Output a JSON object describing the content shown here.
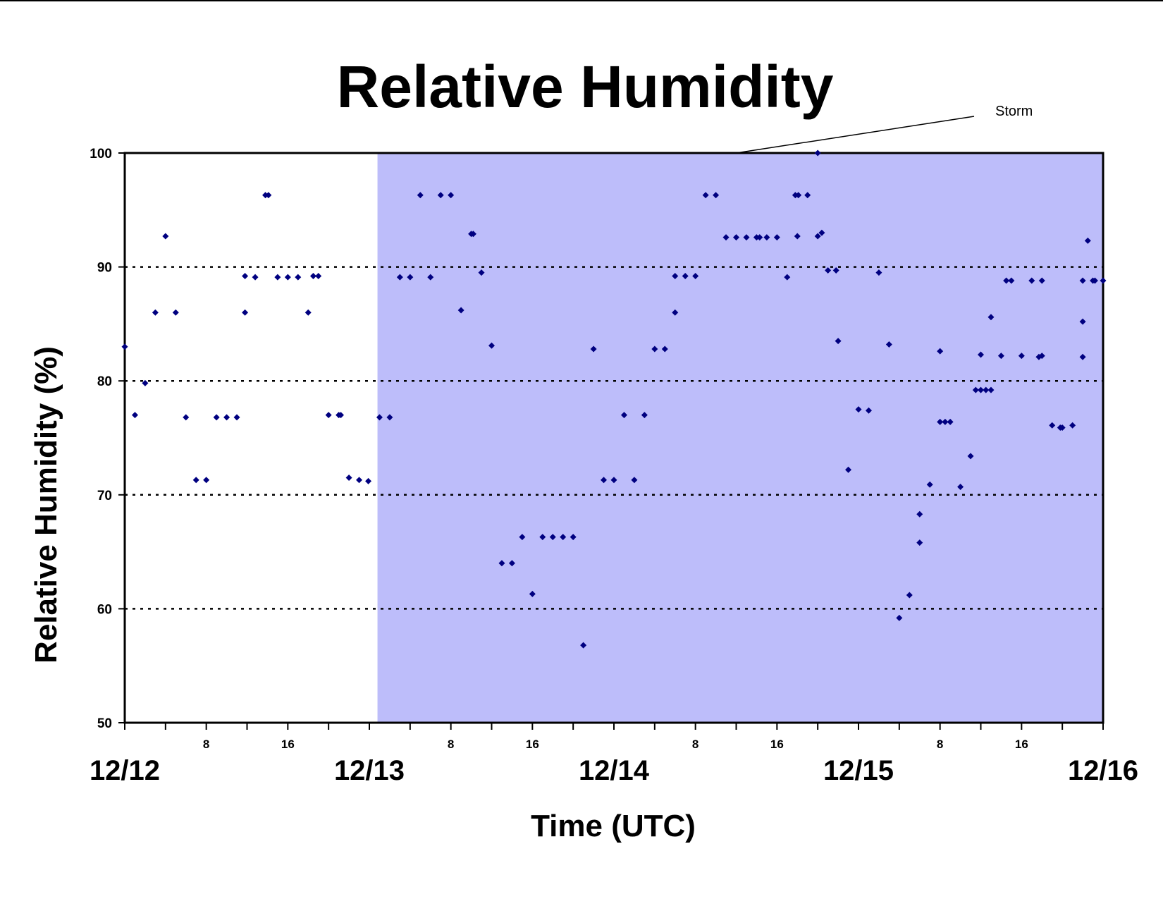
{
  "chart_data": {
    "type": "scatter",
    "title": "Relative Humidity",
    "xlabel": "Time (UTC)",
    "ylabel": "Relative Humidity (%)",
    "x_unit": "hours from 12/12 00 UTC",
    "ylim": [
      50,
      100
    ],
    "xlim": [
      0,
      96
    ],
    "yticks": [
      "50",
      "60",
      "70",
      "80",
      "90",
      "100"
    ],
    "grid_lines_y": [
      60,
      70,
      80,
      90
    ],
    "hour_ticks": [
      {
        "x": 8,
        "label": "8"
      },
      {
        "x": 16,
        "label": "16"
      },
      {
        "x": 32,
        "label": "8"
      },
      {
        "x": 40,
        "label": "16"
      },
      {
        "x": 56,
        "label": "8"
      },
      {
        "x": 64,
        "label": "16"
      },
      {
        "x": 80,
        "label": "8"
      },
      {
        "x": 88,
        "label": "16"
      }
    ],
    "day_labels": [
      {
        "x": 0,
        "label": "12/12"
      },
      {
        "x": 24,
        "label": "12/13"
      },
      {
        "x": 48,
        "label": "12/14"
      },
      {
        "x": 72,
        "label": "12/15"
      },
      {
        "x": 96,
        "label": "12/16"
      }
    ],
    "storm_region": {
      "x_start": 24.8,
      "x_end": 96,
      "color": "#bdbdfa"
    },
    "annotation": {
      "text": "Storm",
      "target_x": 60,
      "target_y": 100
    },
    "marker_color": "#000080",
    "points": [
      [
        0,
        83
      ],
      [
        1,
        77
      ],
      [
        2,
        79.8
      ],
      [
        3,
        86
      ],
      [
        4,
        92.7
      ],
      [
        5,
        86
      ],
      [
        6,
        76.8
      ],
      [
        7,
        71.3
      ],
      [
        8,
        71.3
      ],
      [
        9,
        76.8
      ],
      [
        10,
        76.8
      ],
      [
        11,
        76.8
      ],
      [
        11.8,
        89.2
      ],
      [
        11.8,
        86
      ],
      [
        12.8,
        89.1
      ],
      [
        13.8,
        96.3
      ],
      [
        14.1,
        96.3
      ],
      [
        15,
        89.1
      ],
      [
        16,
        89.1
      ],
      [
        17,
        89.1
      ],
      [
        18,
        86
      ],
      [
        18.5,
        89.2
      ],
      [
        19,
        89.2
      ],
      [
        20,
        77
      ],
      [
        21,
        77
      ],
      [
        21.2,
        77
      ],
      [
        22,
        71.5
      ],
      [
        23,
        71.3
      ],
      [
        23.9,
        71.2
      ],
      [
        25,
        76.8
      ],
      [
        26,
        76.8
      ],
      [
        27,
        89.1
      ],
      [
        28,
        89.1
      ],
      [
        29,
        96.3
      ],
      [
        30,
        89.1
      ],
      [
        31,
        96.3
      ],
      [
        32,
        96.3
      ],
      [
        33,
        86.2
      ],
      [
        34,
        92.9
      ],
      [
        34.2,
        92.9
      ],
      [
        35,
        89.5
      ],
      [
        36,
        83.1
      ],
      [
        37,
        64
      ],
      [
        38,
        64
      ],
      [
        39,
        66.3
      ],
      [
        40,
        61.3
      ],
      [
        41,
        66.3
      ],
      [
        42,
        66.3
      ],
      [
        43,
        66.3
      ],
      [
        44,
        66.3
      ],
      [
        45,
        56.8
      ],
      [
        46,
        82.8
      ],
      [
        47,
        71.3
      ],
      [
        48,
        71.3
      ],
      [
        49,
        77
      ],
      [
        50,
        71.3
      ],
      [
        51,
        77
      ],
      [
        52,
        82.8
      ],
      [
        53,
        82.8
      ],
      [
        54,
        86
      ],
      [
        54,
        89.2
      ],
      [
        55,
        89.2
      ],
      [
        56,
        89.2
      ],
      [
        57,
        96.3
      ],
      [
        58,
        96.3
      ],
      [
        59,
        92.6
      ],
      [
        60,
        92.6
      ],
      [
        61,
        92.6
      ],
      [
        62,
        92.6
      ],
      [
        62.3,
        92.6
      ],
      [
        63,
        92.6
      ],
      [
        64,
        92.6
      ],
      [
        65,
        89.1
      ],
      [
        65.8,
        96.3
      ],
      [
        66.1,
        96.3
      ],
      [
        66,
        92.7
      ],
      [
        67,
        96.3
      ],
      [
        68,
        92.7
      ],
      [
        68.4,
        93
      ],
      [
        68,
        100
      ],
      [
        69,
        89.7
      ],
      [
        69.8,
        89.7
      ],
      [
        70,
        83.5
      ],
      [
        71,
        72.2
      ],
      [
        72,
        77.5
      ],
      [
        73,
        77.4
      ],
      [
        74,
        89.5
      ],
      [
        75,
        83.2
      ],
      [
        76,
        59.2
      ],
      [
        77,
        61.2
      ],
      [
        78,
        68.3
      ],
      [
        78,
        65.8
      ],
      [
        79,
        70.9
      ],
      [
        80,
        76.4
      ],
      [
        80,
        82.6
      ],
      [
        80.5,
        76.4
      ],
      [
        81,
        76.4
      ],
      [
        82,
        70.7
      ],
      [
        83,
        73.4
      ],
      [
        83.5,
        79.2
      ],
      [
        84,
        79.2
      ],
      [
        84,
        82.3
      ],
      [
        84.5,
        79.2
      ],
      [
        85,
        79.2
      ],
      [
        85,
        85.6
      ],
      [
        86,
        82.2
      ],
      [
        86.5,
        88.8
      ],
      [
        87,
        88.8
      ],
      [
        88,
        82.2
      ],
      [
        89,
        88.8
      ],
      [
        89.7,
        82.1
      ],
      [
        90,
        82.2
      ],
      [
        90,
        88.8
      ],
      [
        91,
        76.1
      ],
      [
        91.8,
        75.9
      ],
      [
        92,
        75.9
      ],
      [
        93,
        76.1
      ],
      [
        94,
        82.1
      ],
      [
        94,
        88.8
      ],
      [
        94,
        85.2
      ],
      [
        94.5,
        92.3
      ],
      [
        95,
        88.8
      ],
      [
        95.2,
        88.8
      ],
      [
        96,
        88.8
      ]
    ]
  }
}
